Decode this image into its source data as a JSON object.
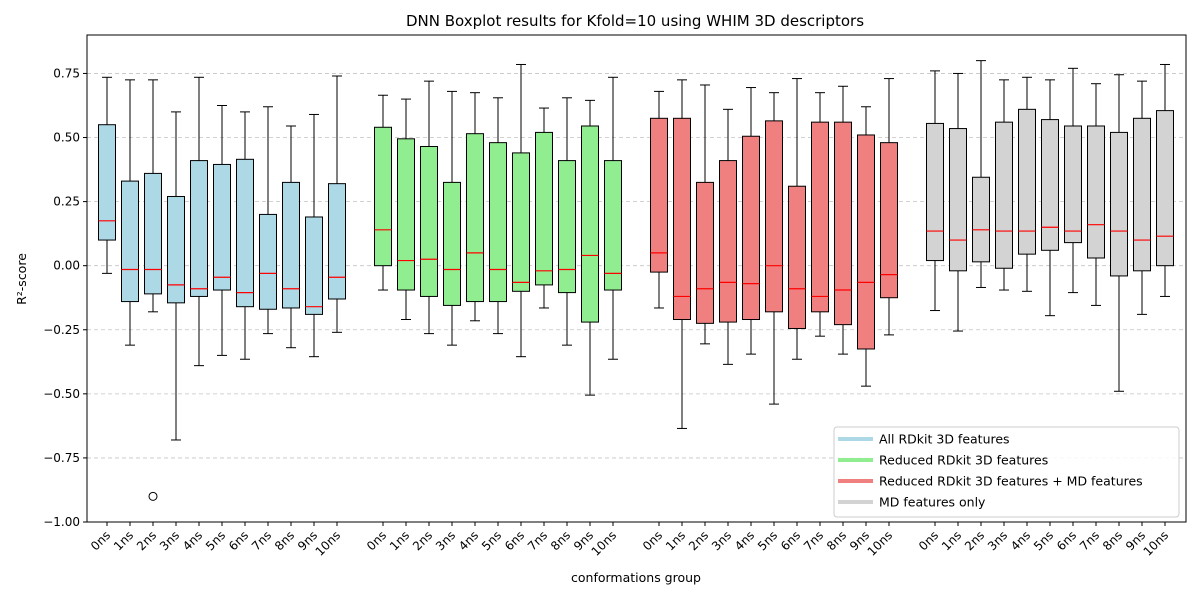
{
  "chart_data": {
    "type": "boxplot",
    "title": "DNN Boxplot results for Kfold=10 using WHIM 3D descriptors",
    "xlabel": "conformations group",
    "ylabel": "R²-score",
    "ylim": [
      -1.0,
      0.9
    ],
    "yticks": [
      "−1.00",
      "−0.75",
      "−0.50",
      "−0.25",
      "0.00",
      "0.25",
      "0.50",
      "0.75"
    ],
    "ytick_values": [
      -1.0,
      -0.75,
      -0.5,
      -0.25,
      0.0,
      0.25,
      0.5,
      0.75
    ],
    "grid": "y-dashed",
    "legend_position": "bottom-right",
    "categories": [
      "0ns",
      "1ns",
      "2ns",
      "3ns",
      "4ns",
      "5ns",
      "6ns",
      "7ns",
      "8ns",
      "9ns",
      "10ns"
    ],
    "series": [
      {
        "name": "All RDkit 3D features",
        "color": "#add8e6",
        "boxes": [
          {
            "whislo": -0.03,
            "q1": 0.1,
            "med": 0.175,
            "q3": 0.55,
            "whishi": 0.735
          },
          {
            "whislo": -0.31,
            "q1": -0.14,
            "med": -0.015,
            "q3": 0.33,
            "whishi": 0.725
          },
          {
            "whislo": -0.18,
            "q1": -0.11,
            "med": -0.015,
            "q3": 0.36,
            "whishi": 0.725,
            "fliers": [
              -0.9
            ]
          },
          {
            "whislo": -0.68,
            "q1": -0.145,
            "med": -0.075,
            "q3": 0.27,
            "whishi": 0.6
          },
          {
            "whislo": -0.39,
            "q1": -0.12,
            "med": -0.09,
            "q3": 0.41,
            "whishi": 0.735
          },
          {
            "whislo": -0.35,
            "q1": -0.095,
            "med": -0.045,
            "q3": 0.395,
            "whishi": 0.625
          },
          {
            "whislo": -0.365,
            "q1": -0.16,
            "med": -0.105,
            "q3": 0.415,
            "whishi": 0.6
          },
          {
            "whislo": -0.265,
            "q1": -0.17,
            "med": -0.03,
            "q3": 0.2,
            "whishi": 0.62
          },
          {
            "whislo": -0.32,
            "q1": -0.165,
            "med": -0.09,
            "q3": 0.325,
            "whishi": 0.545
          },
          {
            "whislo": -0.355,
            "q1": -0.19,
            "med": -0.16,
            "q3": 0.19,
            "whishi": 0.59
          },
          {
            "whislo": -0.26,
            "q1": -0.13,
            "med": -0.045,
            "q3": 0.32,
            "whishi": 0.74
          }
        ]
      },
      {
        "name": "Reduced RDkit 3D features",
        "color": "#90ee90",
        "boxes": [
          {
            "whislo": -0.095,
            "q1": 0.0,
            "med": 0.14,
            "q3": 0.54,
            "whishi": 0.665
          },
          {
            "whislo": -0.21,
            "q1": -0.095,
            "med": 0.02,
            "q3": 0.495,
            "whishi": 0.65
          },
          {
            "whislo": -0.265,
            "q1": -0.12,
            "med": 0.025,
            "q3": 0.465,
            "whishi": 0.72
          },
          {
            "whislo": -0.31,
            "q1": -0.155,
            "med": -0.015,
            "q3": 0.325,
            "whishi": 0.68
          },
          {
            "whislo": -0.215,
            "q1": -0.14,
            "med": 0.05,
            "q3": 0.515,
            "whishi": 0.675
          },
          {
            "whislo": -0.265,
            "q1": -0.14,
            "med": -0.015,
            "q3": 0.48,
            "whishi": 0.655
          },
          {
            "whislo": -0.355,
            "q1": -0.1,
            "med": -0.065,
            "q3": 0.44,
            "whishi": 0.785
          },
          {
            "whislo": -0.165,
            "q1": -0.075,
            "med": -0.02,
            "q3": 0.52,
            "whishi": 0.615
          },
          {
            "whislo": -0.31,
            "q1": -0.105,
            "med": -0.015,
            "q3": 0.41,
            "whishi": 0.655
          },
          {
            "whislo": -0.505,
            "q1": -0.22,
            "med": 0.04,
            "q3": 0.545,
            "whishi": 0.645
          },
          {
            "whislo": -0.365,
            "q1": -0.095,
            "med": -0.03,
            "q3": 0.41,
            "whishi": 0.735
          }
        ]
      },
      {
        "name": "Reduced RDkit 3D features + MD features",
        "color": "#f08080",
        "boxes": [
          {
            "whislo": -0.165,
            "q1": -0.025,
            "med": 0.05,
            "q3": 0.575,
            "whishi": 0.68
          },
          {
            "whislo": -0.635,
            "q1": -0.21,
            "med": -0.12,
            "q3": 0.575,
            "whishi": 0.725
          },
          {
            "whislo": -0.305,
            "q1": -0.225,
            "med": -0.09,
            "q3": 0.325,
            "whishi": 0.705
          },
          {
            "whislo": -0.385,
            "q1": -0.22,
            "med": -0.065,
            "q3": 0.41,
            "whishi": 0.61
          },
          {
            "whislo": -0.345,
            "q1": -0.21,
            "med": -0.07,
            "q3": 0.505,
            "whishi": 0.695
          },
          {
            "whislo": -0.54,
            "q1": -0.18,
            "med": -0.0,
            "q3": 0.565,
            "whishi": 0.675
          },
          {
            "whislo": -0.365,
            "q1": -0.245,
            "med": -0.09,
            "q3": 0.31,
            "whishi": 0.73
          },
          {
            "whislo": -0.275,
            "q1": -0.18,
            "med": -0.12,
            "q3": 0.56,
            "whishi": 0.675
          },
          {
            "whislo": -0.345,
            "q1": -0.23,
            "med": -0.095,
            "q3": 0.56,
            "whishi": 0.7
          },
          {
            "whislo": -0.47,
            "q1": -0.325,
            "med": -0.065,
            "q3": 0.51,
            "whishi": 0.62
          },
          {
            "whislo": -0.27,
            "q1": -0.125,
            "med": -0.035,
            "q3": 0.48,
            "whishi": 0.73
          }
        ]
      },
      {
        "name": "MD features only",
        "color": "#d3d3d3",
        "boxes": [
          {
            "whislo": -0.175,
            "q1": 0.02,
            "med": 0.135,
            "q3": 0.555,
            "whishi": 0.76
          },
          {
            "whislo": -0.255,
            "q1": -0.02,
            "med": 0.1,
            "q3": 0.535,
            "whishi": 0.75
          },
          {
            "whislo": -0.085,
            "q1": 0.015,
            "med": 0.14,
            "q3": 0.345,
            "whishi": 0.8
          },
          {
            "whislo": -0.095,
            "q1": -0.01,
            "med": 0.135,
            "q3": 0.56,
            "whishi": 0.725
          },
          {
            "whislo": -0.1,
            "q1": 0.045,
            "med": 0.135,
            "q3": 0.61,
            "whishi": 0.735
          },
          {
            "whislo": -0.195,
            "q1": 0.06,
            "med": 0.15,
            "q3": 0.57,
            "whishi": 0.725
          },
          {
            "whislo": -0.105,
            "q1": 0.09,
            "med": 0.135,
            "q3": 0.545,
            "whishi": 0.77
          },
          {
            "whislo": -0.155,
            "q1": 0.03,
            "med": 0.16,
            "q3": 0.545,
            "whishi": 0.71
          },
          {
            "whislo": -0.49,
            "q1": -0.04,
            "med": 0.135,
            "q3": 0.52,
            "whishi": 0.745
          },
          {
            "whislo": -0.19,
            "q1": -0.02,
            "med": 0.1,
            "q3": 0.575,
            "whishi": 0.72
          },
          {
            "whislo": -0.12,
            "q1": 0.0,
            "med": 0.115,
            "q3": 0.605,
            "whishi": 0.785
          }
        ]
      }
    ],
    "median_color": "#ff0000",
    "edge_color": "#000000",
    "grid_color": "#c4c4c4"
  }
}
